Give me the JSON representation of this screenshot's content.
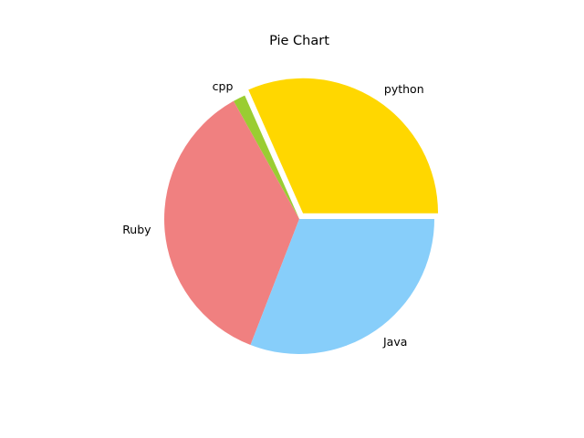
{
  "chart_data": {
    "type": "pie",
    "title": "Pie Chart",
    "slices": [
      {
        "label": "python",
        "value": 215,
        "color": "#ffd700",
        "exploded": true
      },
      {
        "label": "cpp",
        "value": 10,
        "color": "#9acd32",
        "exploded": false
      },
      {
        "label": "Ruby",
        "value": 245,
        "color": "#f08080",
        "exploded": false
      },
      {
        "label": "Java",
        "value": 210,
        "color": "#87cefa",
        "exploded": false
      }
    ],
    "start_angle": 0,
    "direction": "counterclockwise"
  }
}
